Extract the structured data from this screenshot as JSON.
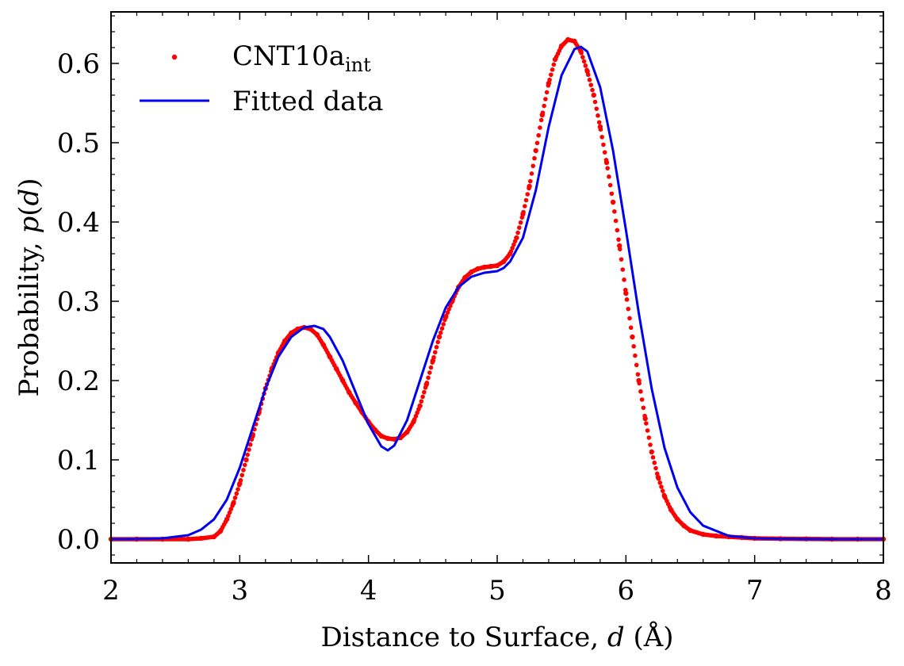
{
  "chart_data": {
    "type": "scatter",
    "xlabel_prefix": "Distance to Surface, ",
    "xlabel_var": "d",
    "xlabel_unit": " (Å)",
    "ylabel_prefix": "Probability, ",
    "ylabel_func": "p",
    "ylabel_var": "d",
    "xlim": [
      2,
      8
    ],
    "ylim": [
      -0.03,
      0.665
    ],
    "x_ticks": [
      2,
      3,
      4,
      5,
      6,
      7,
      8
    ],
    "x_tick_labels": [
      "2",
      "3",
      "4",
      "5",
      "6",
      "7",
      "8"
    ],
    "y_ticks": [
      0.0,
      0.1,
      0.2,
      0.3,
      0.4,
      0.5,
      0.6
    ],
    "y_tick_labels": [
      "0.0",
      "0.1",
      "0.2",
      "0.3",
      "0.4",
      "0.5",
      "0.6"
    ],
    "legend_position": "top-left",
    "grid": false,
    "series": [
      {
        "name": "CNT10a",
        "name_subscript": "int",
        "kind": "points",
        "color": "#ff0000",
        "x": [
          2.0,
          2.2,
          2.4,
          2.6,
          2.7,
          2.8,
          2.85,
          2.9,
          2.95,
          3.0,
          3.05,
          3.1,
          3.15,
          3.2,
          3.25,
          3.3,
          3.35,
          3.4,
          3.45,
          3.5,
          3.55,
          3.6,
          3.65,
          3.7,
          3.75,
          3.8,
          3.85,
          3.9,
          3.95,
          4.0,
          4.05,
          4.1,
          4.15,
          4.2,
          4.25,
          4.3,
          4.35,
          4.4,
          4.45,
          4.5,
          4.55,
          4.6,
          4.65,
          4.7,
          4.75,
          4.8,
          4.85,
          4.9,
          4.95,
          5.0,
          5.05,
          5.1,
          5.15,
          5.2,
          5.25,
          5.3,
          5.35,
          5.4,
          5.45,
          5.5,
          5.55,
          5.6,
          5.65,
          5.7,
          5.75,
          5.8,
          5.85,
          5.9,
          5.95,
          6.0,
          6.05,
          6.1,
          6.15,
          6.2,
          6.25,
          6.3,
          6.35,
          6.4,
          6.45,
          6.5,
          6.6,
          6.7,
          6.8,
          6.9,
          7.0,
          7.2,
          7.4,
          7.6,
          7.8,
          8.0
        ],
        "y": [
          0.0,
          0.0,
          0.0,
          0.0,
          0.001,
          0.003,
          0.01,
          0.025,
          0.045,
          0.07,
          0.1,
          0.13,
          0.16,
          0.19,
          0.215,
          0.235,
          0.25,
          0.26,
          0.265,
          0.267,
          0.265,
          0.258,
          0.245,
          0.23,
          0.215,
          0.2,
          0.185,
          0.172,
          0.16,
          0.148,
          0.138,
          0.13,
          0.127,
          0.126,
          0.128,
          0.135,
          0.148,
          0.168,
          0.195,
          0.225,
          0.255,
          0.28,
          0.3,
          0.318,
          0.33,
          0.337,
          0.341,
          0.343,
          0.344,
          0.345,
          0.35,
          0.36,
          0.38,
          0.41,
          0.445,
          0.49,
          0.535,
          0.575,
          0.605,
          0.622,
          0.63,
          0.628,
          0.615,
          0.59,
          0.56,
          0.52,
          0.475,
          0.425,
          0.37,
          0.31,
          0.255,
          0.2,
          0.152,
          0.11,
          0.078,
          0.054,
          0.037,
          0.025,
          0.017,
          0.011,
          0.006,
          0.004,
          0.003,
          0.002,
          0.001,
          0.0005,
          0.0003,
          0.0,
          0.0,
          0.0
        ]
      },
      {
        "name": "Fitted data",
        "kind": "line",
        "color": "#0000ee",
        "x": [
          2.0,
          2.2,
          2.4,
          2.6,
          2.7,
          2.8,
          2.9,
          3.0,
          3.1,
          3.2,
          3.3,
          3.4,
          3.5,
          3.58,
          3.65,
          3.7,
          3.8,
          3.9,
          4.0,
          4.1,
          4.15,
          4.2,
          4.3,
          4.4,
          4.5,
          4.6,
          4.7,
          4.8,
          4.9,
          5.0,
          5.05,
          5.1,
          5.2,
          5.3,
          5.4,
          5.5,
          5.6,
          5.65,
          5.7,
          5.8,
          5.9,
          6.0,
          6.1,
          6.2,
          6.3,
          6.4,
          6.5,
          6.6,
          6.8,
          7.0,
          7.2,
          7.5,
          8.0
        ],
        "y": [
          0.0,
          0.0002,
          0.001,
          0.005,
          0.012,
          0.025,
          0.05,
          0.09,
          0.14,
          0.19,
          0.23,
          0.255,
          0.267,
          0.269,
          0.265,
          0.255,
          0.225,
          0.185,
          0.145,
          0.117,
          0.112,
          0.118,
          0.15,
          0.2,
          0.25,
          0.292,
          0.318,
          0.331,
          0.336,
          0.338,
          0.342,
          0.35,
          0.38,
          0.44,
          0.52,
          0.585,
          0.618,
          0.621,
          0.615,
          0.57,
          0.49,
          0.39,
          0.285,
          0.19,
          0.115,
          0.065,
          0.034,
          0.017,
          0.004,
          0.001,
          0.0003,
          0.0,
          0.0
        ]
      }
    ]
  }
}
